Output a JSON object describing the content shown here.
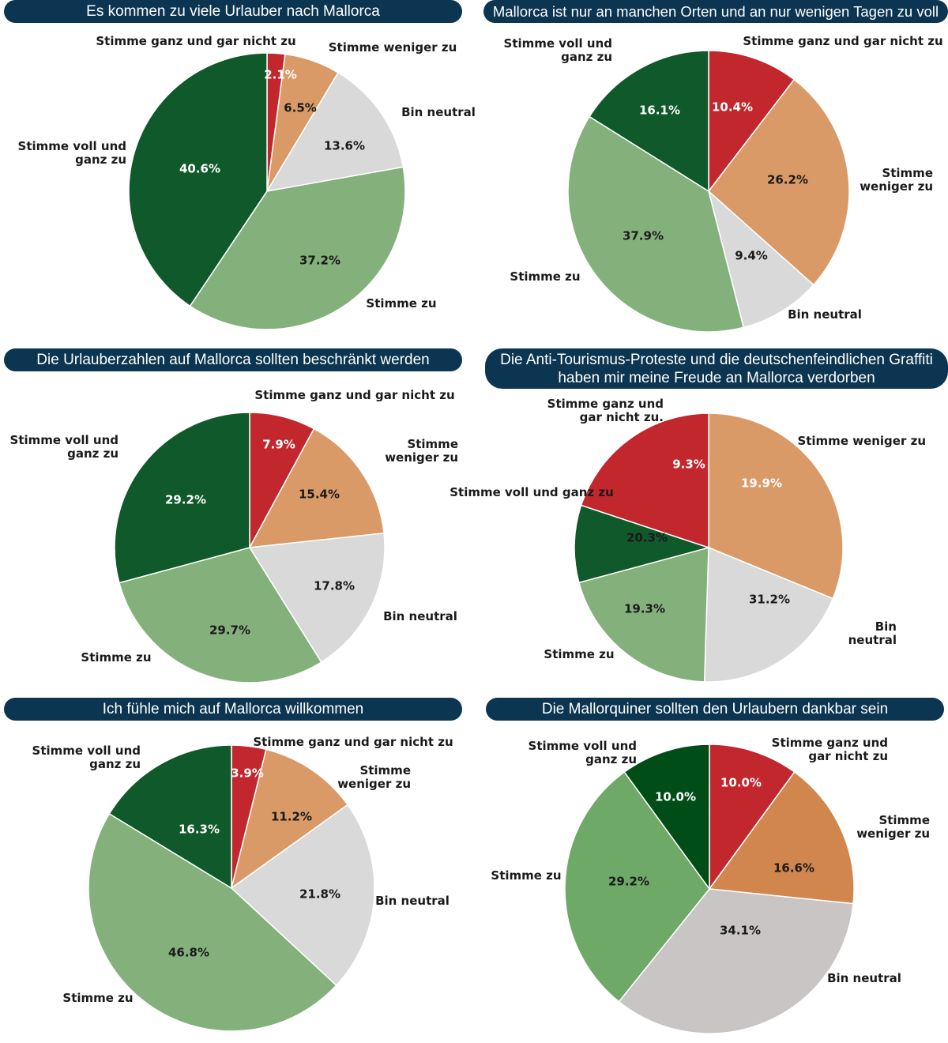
{
  "chart_data": [
    {
      "type": "pie",
      "title": "Es kommen zu viele Urlauber nach Mallorca",
      "slices": [
        {
          "label": "Stimme ganz und gar nicht zu",
          "value": 2.1,
          "display": "2.1%",
          "color": "#c1272d"
        },
        {
          "label": "Stimme weniger zu",
          "value": 6.5,
          "display": "6.5%",
          "color": "#d99a67"
        },
        {
          "label": "Bin neutral",
          "value": 13.6,
          "display": "13.6%",
          "color": "#d9d9d9"
        },
        {
          "label": "Stimme zu",
          "value": 37.2,
          "display": "37.2%",
          "color": "#84b07c"
        },
        {
          "label": "Stimme voll und ganz zu",
          "value": 40.6,
          "display": "40.6%",
          "color": "#10592a"
        }
      ]
    },
    {
      "type": "pie",
      "title": "Mallorca ist nur an manchen Orten und an nur wenigen Tagen zu voll",
      "slices": [
        {
          "label": "Stimme ganz und gar nicht zu",
          "value": 10.4,
          "display": "10.4%",
          "color": "#c1272d"
        },
        {
          "label": "Stimme weniger zu",
          "value": 26.2,
          "display": "26.2%",
          "color": "#d99a67"
        },
        {
          "label": "Bin neutral",
          "value": 9.4,
          "display": "9.4%",
          "color": "#d9d9d9"
        },
        {
          "label": "Stimme zu",
          "value": 37.9,
          "display": "37.9%",
          "color": "#84b07c"
        },
        {
          "label": "Stimme voll und ganz zu",
          "value": 16.1,
          "display": "16.1%",
          "color": "#10592a"
        }
      ]
    },
    {
      "type": "pie",
      "title": "Die Urlauberzahlen auf Mallorca sollten beschränkt werden",
      "slices": [
        {
          "label": "Stimme ganz und gar nicht zu",
          "value": 7.9,
          "display": "7.9%",
          "color": "#c1272d"
        },
        {
          "label": "Stimme weniger zu",
          "value": 15.4,
          "display": "15.4%",
          "color": "#d99a67"
        },
        {
          "label": "Bin neutral",
          "value": 17.8,
          "display": "17.8%",
          "color": "#d9d9d9"
        },
        {
          "label": "Stimme zu",
          "value": 29.7,
          "display": "29.7%",
          "color": "#84b07c"
        },
        {
          "label": "Stimme voll und ganz zu",
          "value": 29.2,
          "display": "29.2%",
          "color": "#10592a"
        }
      ]
    },
    {
      "type": "pie",
      "title": "Die Anti-Tourismus-Proteste und die deutschenfeindlichen Graffiti haben mir meine Freude an Mallorca verdorben",
      "title_lines": [
        "Die Anti-Tourismus-Proteste und die deutschenfeindlichen Graffiti",
        "haben mir meine Freude an Mallorca verdorben"
      ],
      "slices": [
        {
          "label": "Stimme ganz und gar nicht zu.",
          "value": 19.9,
          "display": "19.9%",
          "color": "#c1272d"
        },
        {
          "label": "Stimme weniger zu",
          "value": 31.2,
          "display": "31.2%",
          "color": "#d99a67"
        },
        {
          "label": "Bin neutral",
          "value": 19.3,
          "display": "19.3%",
          "color": "#d9d9d9"
        },
        {
          "label": "Stimme zu",
          "value": 20.3,
          "display": "20.3%",
          "color": "#84b07c"
        },
        {
          "label": "Stimme voll und ganz zu",
          "value": 9.3,
          "display": "9.3%",
          "color": "#10592a"
        }
      ]
    },
    {
      "type": "pie",
      "title": "Ich fühle mich auf Mallorca willkommen",
      "slices": [
        {
          "label": "Stimme ganz und gar nicht zu",
          "value": 3.9,
          "display": "3.9%",
          "color": "#c1272d"
        },
        {
          "label": "Stimme weniger zu",
          "value": 11.2,
          "display": "11.2%",
          "color": "#d99a67"
        },
        {
          "label": "Bin neutral",
          "value": 21.8,
          "display": "21.8%",
          "color": "#d9d9d9"
        },
        {
          "label": "Stimme zu",
          "value": 46.8,
          "display": "46.8%",
          "color": "#84b07c"
        },
        {
          "label": "Stimme voll und ganz zu",
          "value": 16.3,
          "display": "16.3%",
          "color": "#10592a"
        }
      ]
    },
    {
      "type": "pie",
      "title": "Die Mallorquiner sollten den Urlaubern dankbar sein",
      "slices": [
        {
          "label": "Stimme ganz und gar nicht zu",
          "value": 10.0,
          "display": "10.0%",
          "color": "#c1272d"
        },
        {
          "label": "Stimme weniger zu",
          "value": 16.6,
          "display": "16.6%",
          "color": "#d0864d"
        },
        {
          "label": "Bin neutral",
          "value": 34.1,
          "display": "34.1%",
          "color": "#c8c5c4"
        },
        {
          "label": "Stimme zu",
          "value": 29.2,
          "display": "29.2%",
          "color": "#6ea968"
        },
        {
          "label": "Stimme voll und ganz zu",
          "value": 10.0,
          "display": "10.0%",
          "color": "#004d17"
        }
      ]
    }
  ]
}
